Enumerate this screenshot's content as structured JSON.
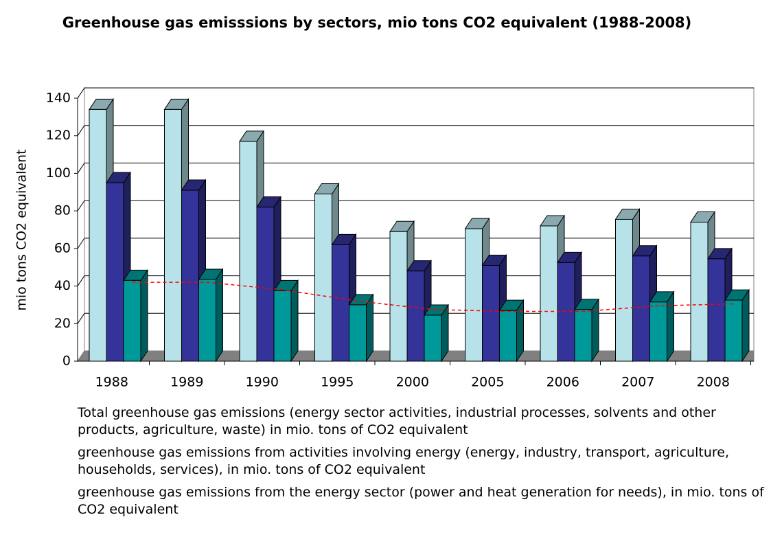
{
  "chart_data": {
    "type": "bar3d",
    "title": "Greenhouse gas emisssions by sectors, mio tons CO2 equivalent (1988-2008)",
    "y_label": "mio tons CO2 equivalent",
    "categories": [
      "1988",
      "1989",
      "1990",
      "1995",
      "2000",
      "2005",
      "2006",
      "2007",
      "2008"
    ],
    "series": [
      {
        "name": "Total greenhouse gas emissions (energy sector activities, industrial processes, solvents and other products, agriculture, waste) in mio. tons of CO2 equivalent",
        "color": "#b8e2ea",
        "values": [
          134,
          134,
          117,
          89,
          69,
          70.5,
          72,
          75.5,
          74
        ]
      },
      {
        "name": "greenhouse gas emissions from activities involving energy (energy, industry, transport, agriculture, households, services), in mio. tons of CO2 equivalent",
        "color": "#333399",
        "values": [
          95,
          91,
          82,
          62,
          48,
          51,
          52.5,
          56,
          54.5
        ]
      },
      {
        "name": "greenhouse gas emissions from the energy sector (power and heat generation for needs), in mio. tons of CO2 equivalent",
        "color": "#009999",
        "values": [
          43,
          43.5,
          37.5,
          30,
          24.5,
          27,
          27.5,
          31.5,
          32.5
        ]
      }
    ],
    "trendline": {
      "color": "#ff0000",
      "values": [
        42,
        42,
        38,
        32,
        27.5,
        26.5,
        26.5,
        29.5,
        30.5
      ]
    },
    "ylim": [
      0,
      140
    ],
    "yticks": [
      0,
      20,
      40,
      60,
      80,
      100,
      120,
      140
    ],
    "grid": true
  }
}
